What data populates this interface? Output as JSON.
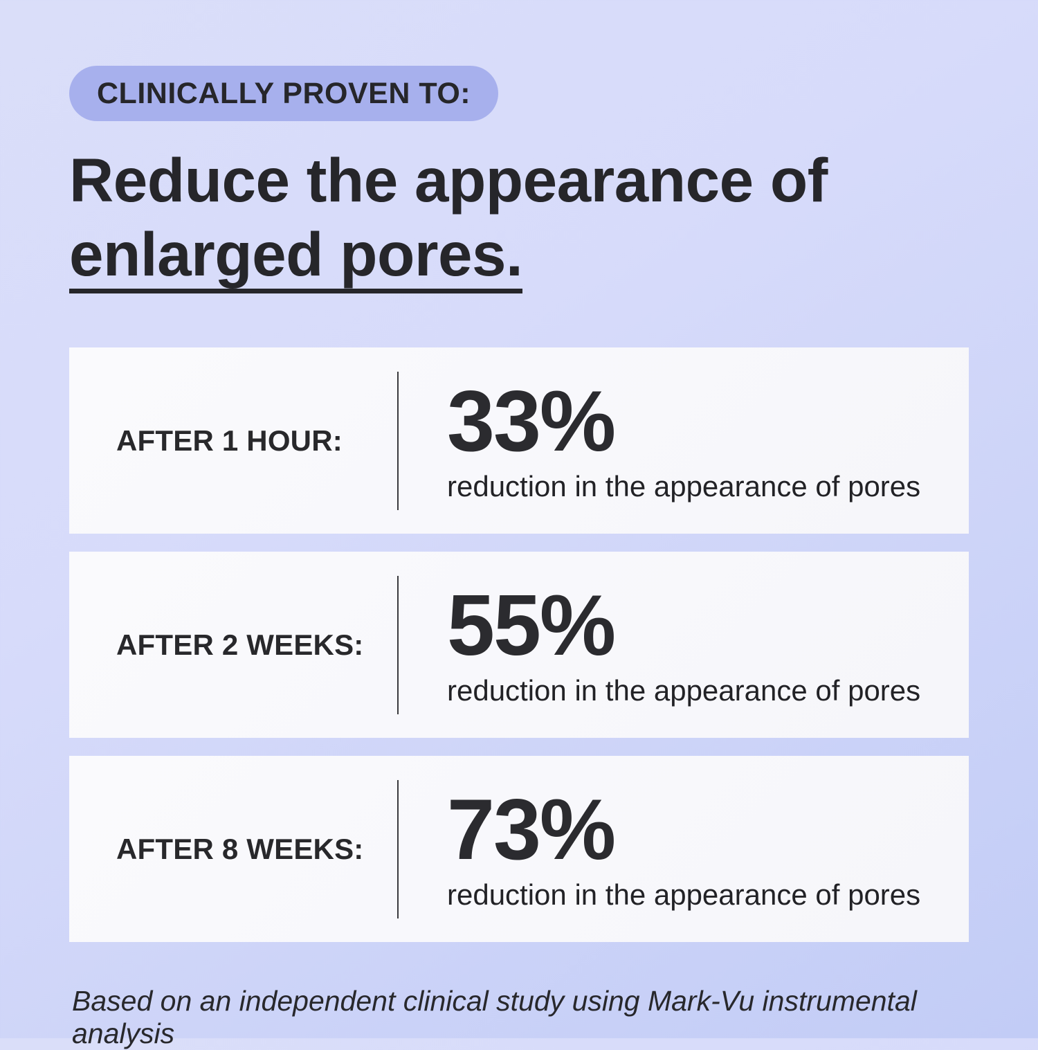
{
  "badge": {
    "label": "CLINICALLY PROVEN TO:"
  },
  "headline": {
    "line1": "Reduce the appearance of",
    "line2_underlined": "enlarged pores."
  },
  "stats": [
    {
      "label": "AFTER 1 HOUR:",
      "value": "33%",
      "description": "reduction in the appearance of pores"
    },
    {
      "label": "AFTER 2 WEEKS:",
      "value": "55%",
      "description": "reduction in the appearance of pores"
    },
    {
      "label": "AFTER 8 WEEKS:",
      "value": "73%",
      "description": "reduction in the appearance of pores"
    }
  ],
  "footnote": "Based on an independent clinical study using Mark-Vu instrumental analysis",
  "colors": {
    "background_top": "#D9DDF9",
    "background_bottom": "#C3CCF6",
    "badge_background": "#A7B0ED",
    "card_background": "#F8F8FB",
    "text_dark": "#28282B",
    "divider": "#3A3A3E"
  }
}
